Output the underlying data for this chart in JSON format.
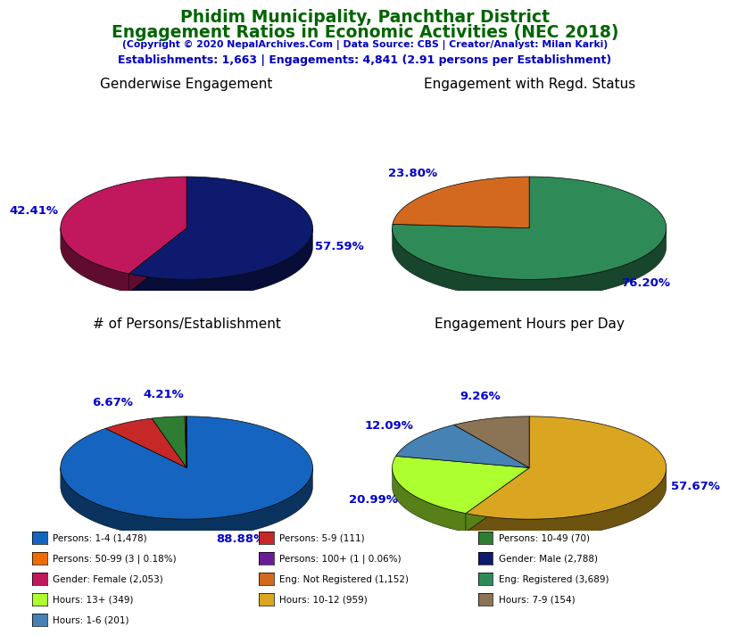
{
  "title_line1": "Phidim Municipality, Panchthar District",
  "title_line2": "Engagement Ratios in Economic Activities (NEC 2018)",
  "subtitle": "(Copyright © 2020 NepalArchives.Com | Data Source: CBS | Creator/Analyst: Milan Karki)",
  "stats_line": "Establishments: 1,663 | Engagements: 4,841 (2.91 persons per Establishment)",
  "title_color": "#006400",
  "subtitle_color": "#0000bb",
  "stats_color": "#0000bb",
  "pie1_title": "Genderwise Engagement",
  "pie1_values": [
    57.59,
    42.41
  ],
  "pie1_colors": [
    "#0d1a6e",
    "#c0175d"
  ],
  "pie1_labels": [
    "57.59%",
    "42.41%"
  ],
  "pie1_startangle": 90,
  "pie2_title": "Engagement with Regd. Status",
  "pie2_values": [
    76.2,
    23.8
  ],
  "pie2_colors": [
    "#2e8b57",
    "#d2691e"
  ],
  "pie2_labels": [
    "76.20%",
    "23.80%"
  ],
  "pie2_startangle": 90,
  "pie3_title": "# of Persons/Establishment",
  "pie3_values": [
    88.88,
    6.67,
    4.21,
    0.18,
    0.06
  ],
  "pie3_colors": [
    "#1565c0",
    "#c62828",
    "#2e7d32",
    "#ef6c00",
    "#6a1b9a"
  ],
  "pie3_labels": [
    "88.88%",
    "6.67%",
    "4.21%",
    "",
    ""
  ],
  "pie3_startangle": 90,
  "pie4_title": "Engagement Hours per Day",
  "pie4_values": [
    57.67,
    20.99,
    12.09,
    9.26
  ],
  "pie4_colors": [
    "#daa520",
    "#adff2f",
    "#4682b4",
    "#8b7355"
  ],
  "pie4_labels": [
    "57.67%",
    "20.99%",
    "12.09%",
    "9.26%"
  ],
  "pie4_startangle": 90,
  "legend_cols": [
    [
      {
        "label": "Persons: 1-4 (1,478)",
        "color": "#1565c0"
      },
      {
        "label": "Persons: 50-99 (3 | 0.18%)",
        "color": "#ef6c00"
      },
      {
        "label": "Gender: Female (2,053)",
        "color": "#c0175d"
      },
      {
        "label": "Hours: 13+ (349)",
        "color": "#adff2f"
      },
      {
        "label": "Hours: 1-6 (201)",
        "color": "#4682b4"
      }
    ],
    [
      {
        "label": "Persons: 5-9 (111)",
        "color": "#c62828"
      },
      {
        "label": "Persons: 100+ (1 | 0.06%)",
        "color": "#6a1b9a"
      },
      {
        "label": "Eng: Not Registered (1,152)",
        "color": "#d2691e"
      },
      {
        "label": "Hours: 10-12 (959)",
        "color": "#daa520"
      }
    ],
    [
      {
        "label": "Persons: 10-49 (70)",
        "color": "#2e7d32"
      },
      {
        "label": "Gender: Male (2,788)",
        "color": "#0d1a6e"
      },
      {
        "label": "Eng: Registered (3,689)",
        "color": "#2e8b57"
      },
      {
        "label": "Hours: 7-9 (154)",
        "color": "#8b7355"
      }
    ]
  ],
  "background_color": "#ffffff"
}
